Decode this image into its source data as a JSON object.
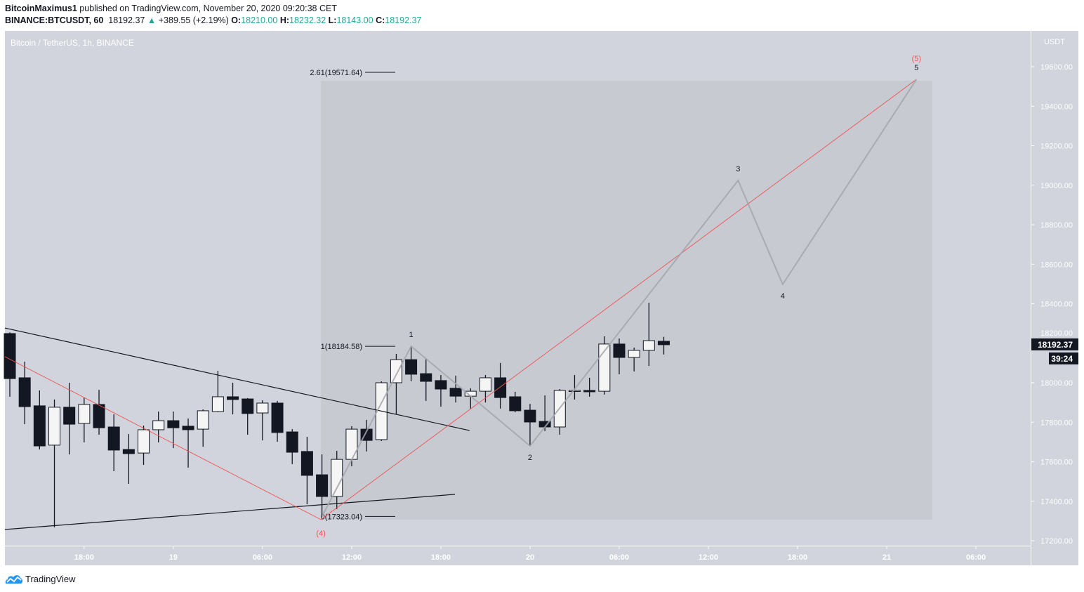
{
  "header": {
    "author": "BitcoinMaximus1",
    "published": "published on TradingView.com, November 20, 2020 09:20:38 CET",
    "symbol": "BINANCE:BTCUSDT, 60",
    "last": "18192.37",
    "change": "+389.55 (+2.19%)",
    "o_label": "O:",
    "o": "18210.00",
    "h_label": "H:",
    "h": "18232.32",
    "l_label": "L:",
    "l": "18143.00",
    "c_label": "C:",
    "c": "18192.37"
  },
  "footer": {
    "brand": "TradingView"
  },
  "colors": {
    "background": "#d1d4dc",
    "box": "#c8cad2",
    "bull": "#f5f5f5",
    "bear": "#131722",
    "teal": "#26a69a",
    "red": "#ef5350",
    "wave": "#a3a6ad",
    "brand": "#2196f3"
  },
  "chart_data": {
    "type": "candlestick",
    "title": "Bitcoin / TetherUS, 1h, BINANCE",
    "currency": "USDT",
    "interval_minutes": 60,
    "start": "2020-11-18T13:00",
    "ylim": [
      17150,
      19750
    ],
    "yticks": [
      17200,
      17400,
      17600,
      17800,
      18000,
      18200,
      18400,
      18600,
      18800,
      19000,
      19200,
      19400,
      19600
    ],
    "ytick_labels": [
      "17200.00",
      "17400.00",
      "17600.00",
      "17800.00",
      "18000.00",
      "18200.00",
      "18400.00",
      "18600.00",
      "18800.00",
      "19000.00",
      "19200.00",
      "19400.00",
      "19600.00"
    ],
    "xticks": [
      {
        "t": "2020-11-18T18:00",
        "label": "18:00"
      },
      {
        "t": "2020-11-19T00:00",
        "label": "19"
      },
      {
        "t": "2020-11-19T06:00",
        "label": "06:00"
      },
      {
        "t": "2020-11-19T12:00",
        "label": "12:00"
      },
      {
        "t": "2020-11-19T18:00",
        "label": "18:00"
      },
      {
        "t": "2020-11-20T00:00",
        "label": "20"
      },
      {
        "t": "2020-11-20T06:00",
        "label": "06:00"
      },
      {
        "t": "2020-11-20T12:00",
        "label": "12:00"
      },
      {
        "t": "2020-11-20T18:00",
        "label": "18:00"
      },
      {
        "t": "2020-11-21T00:00",
        "label": "21"
      },
      {
        "t": "2020-11-21T06:00",
        "label": "06:00"
      }
    ],
    "ohlc": [
      [
        18249,
        18255,
        17929,
        18021
      ],
      [
        18025,
        18107,
        17790,
        17879
      ],
      [
        17883,
        17961,
        17662,
        17680
      ],
      [
        17684,
        17915,
        17268,
        17876
      ],
      [
        17876,
        18000,
        17637,
        17790
      ],
      [
        17794,
        17925,
        17698,
        17890
      ],
      [
        17890,
        17964,
        17737,
        17772
      ],
      [
        17776,
        17840,
        17552,
        17659
      ],
      [
        17662,
        17740,
        17488,
        17641
      ],
      [
        17644,
        17783,
        17584,
        17762
      ],
      [
        17762,
        17854,
        17698,
        17808
      ],
      [
        17808,
        17854,
        17669,
        17772
      ],
      [
        17780,
        17819,
        17570,
        17762
      ],
      [
        17765,
        17865,
        17676,
        17858
      ],
      [
        17854,
        18060,
        17851,
        17929
      ],
      [
        17929,
        18000,
        17840,
        17915
      ],
      [
        17918,
        17922,
        17737,
        17844
      ],
      [
        17847,
        17911,
        17708,
        17897
      ],
      [
        17897,
        17908,
        17701,
        17748
      ],
      [
        17751,
        17765,
        17588,
        17648
      ],
      [
        17652,
        17726,
        17385,
        17531
      ],
      [
        17534,
        17637,
        17323.04,
        17424
      ],
      [
        17424,
        17655,
        17360,
        17612
      ],
      [
        17612,
        17780,
        17577,
        17765
      ],
      [
        17765,
        17812,
        17652,
        17708
      ],
      [
        17712,
        18007,
        17705,
        18000
      ],
      [
        18000,
        18146,
        17840,
        18117
      ],
      [
        18117,
        18184.58,
        18007,
        18043
      ],
      [
        18046,
        18121,
        17908,
        18007
      ],
      [
        18011,
        18039,
        17879,
        17968
      ],
      [
        17972,
        18036,
        17900,
        17932
      ],
      [
        17932,
        17972,
        17869,
        17957
      ],
      [
        17957,
        18039,
        17900,
        18025
      ],
      [
        18025,
        18100,
        17869,
        17925
      ],
      [
        17929,
        17954,
        17851,
        17858
      ],
      [
        17861,
        17893,
        17680,
        17801
      ],
      [
        17804,
        17936,
        17755,
        17776
      ],
      [
        17776,
        17968,
        17737,
        17961
      ],
      [
        17961,
        18039,
        17915,
        17961
      ],
      [
        17961,
        18025,
        17929,
        17954
      ],
      [
        17957,
        18235,
        17940,
        18196
      ],
      [
        18196,
        18224,
        18043,
        18128
      ],
      [
        18128,
        18178,
        18057,
        18164
      ],
      [
        18164,
        18405,
        18085,
        18213
      ],
      [
        18210,
        18232.32,
        18143,
        18192.37
      ]
    ],
    "last_price": {
      "value": 18192.37,
      "label": "18192.37",
      "countdown": "39:24"
    },
    "trendlines": [
      {
        "color": "#131722",
        "points": [
          [
            "2020-11-18T12:40",
            18277
          ],
          [
            "2020-11-19T19:56",
            17758
          ]
        ]
      },
      {
        "color": "#131722",
        "points": [
          [
            "2020-11-18T12:40",
            17257
          ],
          [
            "2020-11-19T18:57",
            17435
          ]
        ]
      },
      {
        "color": "#ef5350",
        "points": [
          [
            "2020-11-18T12:40",
            18132
          ],
          [
            "2020-11-19T09:56",
            17307
          ],
          [
            "2020-11-21T02:00",
            19536
          ]
        ]
      }
    ],
    "wave": {
      "color": "#a3a6ad",
      "points": [
        [
          "2020-11-19T10:00",
          17323.04,
          ""
        ],
        [
          "2020-11-19T16:00",
          18184.58,
          "1"
        ],
        [
          "2020-11-20T00:00",
          17680,
          "2"
        ],
        [
          "2020-11-20T14:00",
          19024,
          "3"
        ],
        [
          "2020-11-20T17:00",
          18498,
          "4"
        ],
        [
          "2020-11-21T02:00",
          19536,
          "5"
        ]
      ]
    },
    "red_labels": [
      {
        "t": "2020-11-19T09:56",
        "price": 17307,
        "text": "(4)",
        "pos": "below"
      },
      {
        "t": "2020-11-21T02:00",
        "price": 19536,
        "text": "(5)",
        "pos": "above"
      }
    ],
    "fib_box": {
      "t0": "2020-11-19T09:56",
      "t1": "2020-11-21T03:04",
      "p0": 17307,
      "p1": 19529
    },
    "fib_levels": [
      {
        "price": 17323.04,
        "label": "0(17323.04)"
      },
      {
        "price": 18184.58,
        "label": "1(18184.58)"
      },
      {
        "price": 19571.64,
        "label": "2.61(19571.64)"
      }
    ]
  }
}
